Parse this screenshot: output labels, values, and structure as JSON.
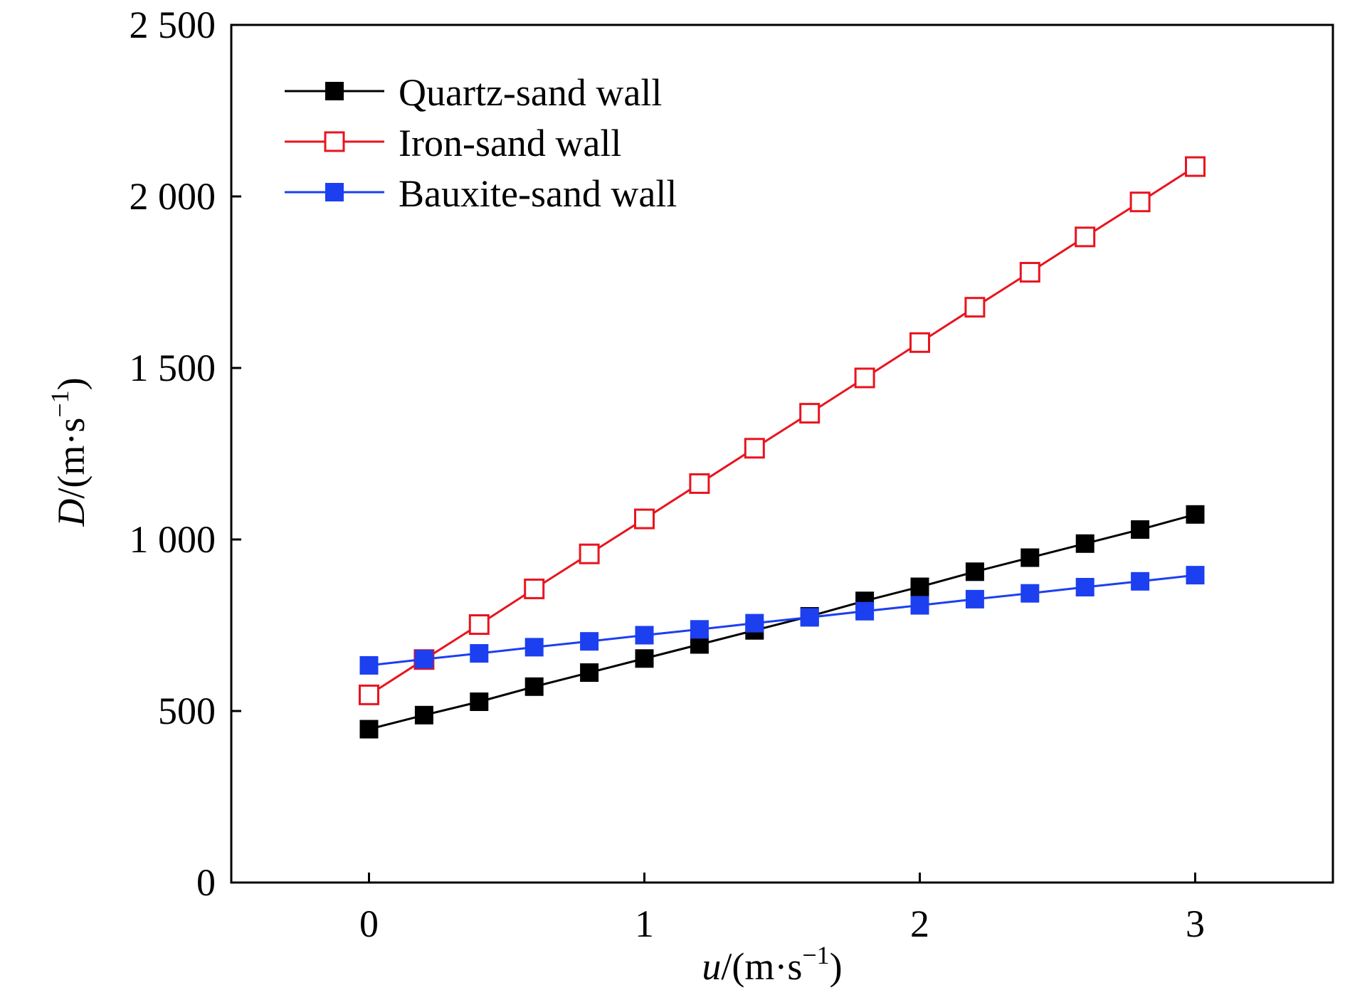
{
  "chart_data": {
    "type": "line",
    "title": "",
    "xlabel": {
      "var": "u",
      "unit": "/(m·s",
      "exp": "−1",
      "close": ")"
    },
    "ylabel": {
      "var": "D",
      "unit": "/(m·s",
      "exp": "−1",
      "close": ")"
    },
    "xlim": [
      -0.5,
      3.5
    ],
    "ylim": [
      0,
      2500
    ],
    "xticks": [
      0,
      1,
      2,
      3
    ],
    "xtick_labels": [
      "0",
      "1",
      "2",
      "3"
    ],
    "yticks": [
      0,
      500,
      1000,
      1500,
      2000,
      2500
    ],
    "ytick_labels": [
      "0",
      "500",
      "1 000",
      "1 500",
      "2 000",
      "2 500"
    ],
    "grid": false,
    "legend": "top-left",
    "x": [
      0,
      0.2,
      0.4,
      0.6,
      0.8,
      1.0,
      1.2,
      1.4,
      1.6,
      1.8,
      2.0,
      2.2,
      2.4,
      2.6,
      2.8,
      3.0
    ],
    "series": [
      {
        "name": "Quartz-sand wall",
        "color": "#000000",
        "marker": "filled-square",
        "values": [
          447,
          488,
          527,
          571,
          612,
          653,
          694,
          735,
          776,
          821,
          862,
          906,
          947,
          988,
          1029,
          1073
        ]
      },
      {
        "name": "Iron-sand wall",
        "color": "#e8141e",
        "marker": "open-square",
        "values": [
          547,
          650,
          752,
          856,
          958,
          1060,
          1163,
          1266,
          1368,
          1471,
          1574,
          1677,
          1779,
          1882,
          1984,
          2087
        ]
      },
      {
        "name": "Bauxite-sand wall",
        "color": "#1c3ff0",
        "marker": "filled-square",
        "values": [
          633,
          651,
          668,
          686,
          703,
          721,
          738,
          756,
          773,
          791,
          808,
          826,
          843,
          861,
          878,
          896
        ]
      }
    ]
  }
}
